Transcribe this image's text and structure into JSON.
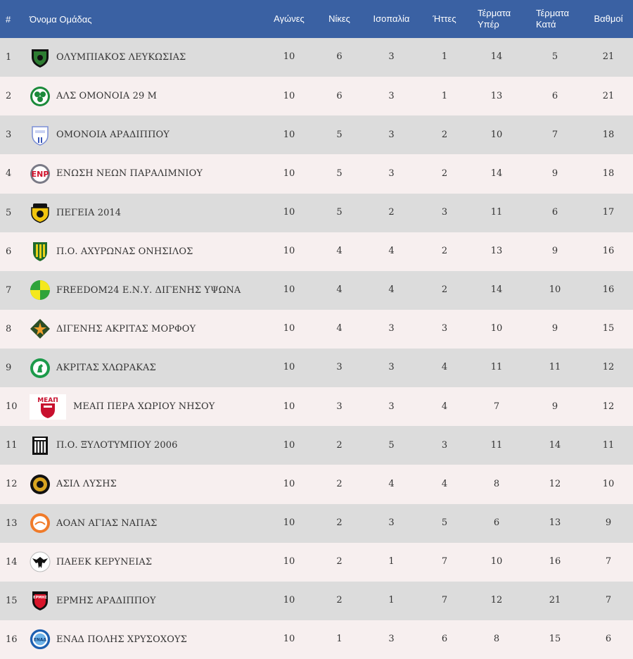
{
  "header": {
    "pos": "#",
    "team": "Όνομα Ομάδας",
    "played": "Αγώνες",
    "wins": "Νίκες",
    "draws": "Ισοπαλία",
    "losses": "Ήττες",
    "gf": "Τέρματα Υπέρ",
    "ga": "Τέρματα Κατά",
    "pts": "Βαθμοί"
  },
  "rows": [
    {
      "pos": "1",
      "team": "ΟΛΥΜΠΙΑΚΟΣ ΛΕΥΚΩΣΙΑΣ",
      "played": "10",
      "wins": "6",
      "draws": "3",
      "losses": "1",
      "gf": "14",
      "ga": "5",
      "pts": "21",
      "logo": "green-black-shield-crest"
    },
    {
      "pos": "2",
      "team": "ΑΛΣ ΟΜΟΝΟΙΑ 29 Μ",
      "played": "10",
      "wins": "6",
      "draws": "3",
      "losses": "1",
      "gf": "13",
      "ga": "6",
      "pts": "21",
      "logo": "green-clover-crest"
    },
    {
      "pos": "3",
      "team": "ΟΜΟΝΟΙΑ ΑΡΑΔΙΠΠΟΥ",
      "played": "10",
      "wins": "5",
      "draws": "3",
      "losses": "2",
      "gf": "10",
      "ga": "7",
      "pts": "18",
      "logo": "blue-white-shield-crest"
    },
    {
      "pos": "4",
      "team": "ΕΝΩΣΗ ΝΕΩΝ ΠΑΡΑΛΙΜΝΙΟΥ",
      "played": "10",
      "wins": "5",
      "draws": "3",
      "losses": "2",
      "gf": "14",
      "ga": "9",
      "pts": "18",
      "logo": "red-enp-round-crest"
    },
    {
      "pos": "5",
      "team": "ΠΕΓΕΙΑ 2014",
      "played": "10",
      "wins": "5",
      "draws": "2",
      "losses": "3",
      "gf": "11",
      "ga": "6",
      "pts": "17",
      "logo": "yellow-black-crest"
    },
    {
      "pos": "6",
      "team": "Π.Ο. ΑΧΥΡΩΝΑΣ ΟΝΗΣΙΛΟΣ",
      "played": "10",
      "wins": "4",
      "draws": "4",
      "losses": "2",
      "gf": "13",
      "ga": "9",
      "pts": "16",
      "logo": "yellow-green-stripes-crest"
    },
    {
      "pos": "7",
      "team": "FREEDOM24 Ε.Ν.Υ. ΔΙΓΕΝΗΣ ΥΨΩΝΑ",
      "played": "10",
      "wins": "4",
      "draws": "4",
      "losses": "2",
      "gf": "14",
      "ga": "10",
      "pts": "16",
      "logo": "yellow-green-round-crest"
    },
    {
      "pos": "8",
      "team": "ΔΙΓΕΝΗΣ ΑΚΡΙΤΑΣ ΜΟΡΦΟΥ",
      "played": "10",
      "wins": "4",
      "draws": "3",
      "losses": "3",
      "gf": "10",
      "ga": "9",
      "pts": "15",
      "logo": "green-orange-star-crest"
    },
    {
      "pos": "9",
      "team": "ΑΚΡΙΤΑΣ ΧΛΩΡΑΚΑΣ",
      "played": "10",
      "wins": "3",
      "draws": "3",
      "losses": "4",
      "gf": "11",
      "ga": "11",
      "pts": "12",
      "logo": "green-horse-round-crest"
    },
    {
      "pos": "10",
      "team": "ΜΕΑΠ ΠΕΡΑ ΧΩΡΙΟΥ ΝΗΣΟΥ",
      "played": "10",
      "wins": "3",
      "draws": "3",
      "losses": "4",
      "gf": "7",
      "ga": "9",
      "pts": "12",
      "logo": "red-meap-crest"
    },
    {
      "pos": "11",
      "team": "Π.Ο. ΞΥΛΟΤΥΜΠΟΥ 2006",
      "played": "10",
      "wins": "2",
      "draws": "5",
      "losses": "3",
      "gf": "11",
      "ga": "14",
      "pts": "11",
      "logo": "black-white-stripes-crest"
    },
    {
      "pos": "12",
      "team": "ΑΣΙΛ ΛΥΣΗΣ",
      "played": "10",
      "wins": "2",
      "draws": "4",
      "losses": "4",
      "gf": "8",
      "ga": "12",
      "pts": "10",
      "logo": "black-gold-round-crest"
    },
    {
      "pos": "13",
      "team": "ΑΟΑΝ ΑΓΙΑΣ ΝΑΠΑΣ",
      "played": "10",
      "wins": "2",
      "draws": "3",
      "losses": "5",
      "gf": "6",
      "ga": "13",
      "pts": "9",
      "logo": "orange-round-crest"
    },
    {
      "pos": "14",
      "team": "ΠΑΕΕΚ ΚΕΡΥΝΕΙΑΣ",
      "played": "10",
      "wins": "2",
      "draws": "1",
      "losses": "7",
      "gf": "10",
      "ga": "16",
      "pts": "7",
      "logo": "black-eagle-crest"
    },
    {
      "pos": "15",
      "team": "ΕΡΜΗΣ ΑΡΑΔΙΠΠΟΥ",
      "played": "10",
      "wins": "2",
      "draws": "1",
      "losses": "7",
      "gf": "12",
      "ga": "21",
      "pts": "7",
      "logo": "red-black-shield-crest"
    },
    {
      "pos": "16",
      "team": "ΕΝΑΔ ΠΟΛΗΣ ΧΡΥΣΟΧΟΥΣ",
      "played": "10",
      "wins": "1",
      "draws": "3",
      "losses": "6",
      "gf": "8",
      "ga": "15",
      "pts": "6",
      "logo": "blue-enad-round-crest"
    }
  ],
  "colors": {
    "header_bg": "#3a61a3",
    "row_odd": "#dcdcdc",
    "row_even": "#f7efef"
  }
}
